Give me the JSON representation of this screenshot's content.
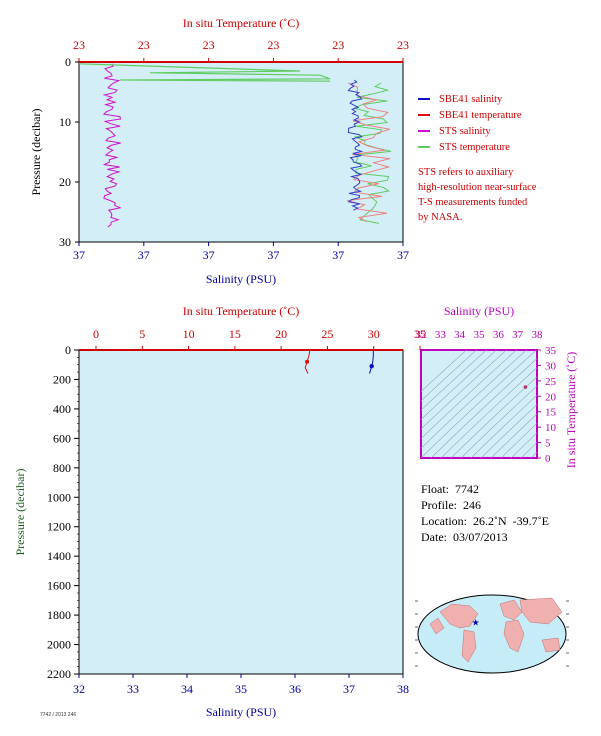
{
  "chart_data": [
    {
      "type": "line",
      "top_axis": {
        "label": "In situ Temperature (˚C)",
        "ticks": [
          "23",
          "23",
          "23",
          "23",
          "23",
          "23"
        ]
      },
      "bottom_axis": {
        "label": "Salinity (PSU)",
        "ticks": [
          "37",
          "37",
          "37",
          "37",
          "37",
          "37"
        ]
      },
      "y_axis": {
        "label": "Pressure (decibar)",
        "ticks": [
          0,
          10,
          20,
          30
        ],
        "range": [
          0,
          30
        ],
        "inverted": true
      },
      "legend": [
        {
          "name": "SBE41 salinity",
          "color": "#1010c0"
        },
        {
          "name": "SBE41 temperature",
          "color": "#e01010"
        },
        {
          "name": "STS salinity",
          "color": "#d010d0"
        },
        {
          "name": "STS temperature",
          "color": "#60cc60"
        }
      ],
      "note": [
        "STS refers to auxiliary",
        "high-resolution near-surface",
        "T-S measurements funded",
        "by NASA."
      ]
    },
    {
      "type": "line",
      "top_axis": {
        "label": "In situ Temperature (˚C)",
        "ticks": [
          0,
          5,
          10,
          15,
          20,
          25,
          30,
          35
        ],
        "range": [
          0,
          35
        ]
      },
      "bottom_axis": {
        "label": "Salinity (PSU)",
        "ticks": [
          32,
          33,
          34,
          35,
          36,
          37,
          38
        ],
        "range": [
          32,
          38
        ]
      },
      "y_axis": {
        "label": "Pressure (decibar)",
        "ticks": [
          0,
          200,
          400,
          600,
          800,
          1000,
          1200,
          1400,
          1600,
          1800,
          2000,
          2200
        ],
        "range": [
          0,
          2200
        ],
        "inverted": true
      },
      "series": [
        {
          "name": "temperature",
          "color": "#e01010",
          "x": [
            23.1,
            23.0,
            22.8,
            22.6,
            22.9
          ],
          "y": [
            0,
            40,
            80,
            120,
            160
          ]
        },
        {
          "name": "salinity",
          "color": "#1010c0",
          "x": [
            37.45,
            37.45,
            37.44,
            37.42,
            37.38
          ],
          "y": [
            0,
            40,
            80,
            110,
            160
          ]
        }
      ]
    },
    {
      "type": "scatter",
      "top_axis": {
        "label": "Salinity (PSU)",
        "ticks": [
          32,
          33,
          34,
          35,
          36,
          37,
          38
        ],
        "range": [
          32,
          38
        ]
      },
      "right_axis": {
        "label": "In situ Temperature (˚C)",
        "ticks": [
          0,
          5,
          10,
          15,
          20,
          25,
          30,
          35
        ],
        "range": [
          0,
          35
        ]
      },
      "points": [
        {
          "x": 37.4,
          "y": 23.0
        }
      ]
    }
  ],
  "float_info": {
    "float": "Float:  7742",
    "profile": "Profile:  246",
    "location": "Location:  26.2˚N  -39.7˚E",
    "date": "Date:  03/07/2013"
  },
  "map_marker": {
    "lat": 26.2,
    "lon": -39.7
  },
  "footer_id": "7742 / 2013 246"
}
